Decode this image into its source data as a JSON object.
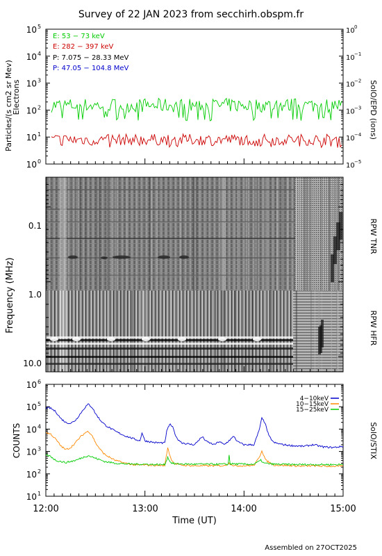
{
  "title": "Survey of 22 JAN 2023 from secchirh.obspm.fr",
  "footer": "Assembled on 27OCT2025",
  "chart_data": [
    {
      "type": "line",
      "panel": "particles",
      "ylabel_lines": [
        "Particles/(s cm2 sr Mev)",
        "Electrons"
      ],
      "right_label": "SolO/EPD (ions)",
      "y_scale": "log",
      "ylim": [
        1,
        100000
      ],
      "right_ylim": [
        1e-05,
        1
      ],
      "left_ticks": [
        {
          "m": "10",
          "e": "5"
        },
        {
          "m": "10",
          "e": "4"
        },
        {
          "m": "10",
          "e": "3"
        },
        {
          "m": "10",
          "e": "2"
        },
        {
          "m": "10",
          "e": "1"
        },
        {
          "m": "10",
          "e": "0"
        }
      ],
      "right_ticks": [
        {
          "m": "10",
          "e": "0"
        },
        {
          "m": "10",
          "e": "−1"
        },
        {
          "m": "10",
          "e": "−2"
        },
        {
          "m": "10",
          "e": "−3"
        },
        {
          "m": "10",
          "e": "−4"
        },
        {
          "m": "10",
          "e": "−5"
        }
      ],
      "legend": [
        {
          "label": "E: 53 − 73 keV",
          "color": "#00cc00"
        },
        {
          "label": "E: 282 − 397 keV",
          "color": "#cc0000"
        },
        {
          "label": "P: 7.075 − 28.33 MeV",
          "color": "#000000"
        },
        {
          "label": "P: 47.05 − 104.8 MeV",
          "color": "#0000cc"
        }
      ],
      "series": [
        {
          "name": "E: 53 − 73 keV",
          "color": "#00cc00",
          "typical": 150,
          "range": [
            40,
            300
          ]
        },
        {
          "name": "E: 282 − 397 keV",
          "color": "#cc0000",
          "typical": 8,
          "range": [
            4,
            20
          ]
        }
      ]
    },
    {
      "type": "heatmap",
      "panel": "radio",
      "ylabel": "Frequency (MHz)",
      "y_scale": "log",
      "ylim": [
        0.04,
        16
      ],
      "ytick_labels": [
        "0.1",
        "1.0",
        "10.0"
      ],
      "right_labels": [
        "RPW TNR",
        "RPW HFR"
      ],
      "tnr_hfr_boundary_mhz": 1.0
    },
    {
      "type": "line",
      "panel": "stix",
      "ylabel": "COUNTS",
      "right_label": "SolO/STIX",
      "y_scale": "log",
      "ylim": [
        10,
        1000000
      ],
      "ticks": [
        {
          "m": "10",
          "e": "6"
        },
        {
          "m": "10",
          "e": "5"
        },
        {
          "m": "10",
          "e": "4"
        },
        {
          "m": "10",
          "e": "3"
        },
        {
          "m": "10",
          "e": "2"
        },
        {
          "m": "10",
          "e": "1"
        }
      ],
      "xlabel": "Time (UT)",
      "x_tick_labels": [
        "12:00",
        "13:00",
        "14:00",
        "15:00"
      ],
      "x_hours": [
        12,
        15
      ],
      "series": [
        {
          "name": "4−10keV",
          "color": "#0000cc",
          "x": [
            12.0,
            12.05,
            12.1,
            12.15,
            12.2,
            12.25,
            12.3,
            12.35,
            12.4,
            12.43,
            12.47,
            12.5,
            12.55,
            12.6,
            12.7,
            12.8,
            12.9,
            12.95,
            12.97,
            13.0,
            13.1,
            13.2,
            13.22,
            13.25,
            13.28,
            13.32,
            13.37,
            13.42,
            13.5,
            13.55,
            13.58,
            13.62,
            13.7,
            13.75,
            13.8,
            13.9,
            13.93,
            14.0,
            14.1,
            14.15,
            14.18,
            14.21,
            14.25,
            14.3,
            14.4,
            14.5,
            14.6,
            14.7,
            14.8,
            14.9,
            15.0
          ],
          "values": [
            90000,
            85000,
            60000,
            30000,
            20000,
            18000,
            25000,
            50000,
            100000,
            130000,
            90000,
            50000,
            25000,
            15000,
            8000,
            5000,
            3500,
            3000,
            7000,
            3000,
            2500,
            2400,
            8000,
            17000,
            12000,
            4000,
            2500,
            2200,
            2000,
            3500,
            4500,
            2800,
            2000,
            2800,
            2000,
            4800,
            2800,
            2000,
            2000,
            8000,
            30000,
            20000,
            5000,
            2500,
            2000,
            1800,
            1700,
            2000,
            1600,
            1500,
            1700
          ]
        },
        {
          "name": "10−15keV",
          "color": "#ff8800",
          "x": [
            12.0,
            12.05,
            12.1,
            12.15,
            12.2,
            12.25,
            12.3,
            12.35,
            12.4,
            12.43,
            12.47,
            12.5,
            12.55,
            12.6,
            12.7,
            12.8,
            12.9,
            13.0,
            13.1,
            13.2,
            13.23,
            13.26,
            13.3,
            13.4,
            13.5,
            13.6,
            13.7,
            13.8,
            13.85,
            13.9,
            14.0,
            14.1,
            14.15,
            14.18,
            14.22,
            14.3,
            14.4,
            14.5,
            14.6,
            14.7,
            14.8,
            14.9,
            15.0
          ],
          "values": [
            7000,
            6000,
            3500,
            1800,
            1200,
            1500,
            2500,
            4500,
            7000,
            8000,
            5000,
            2500,
            1200,
            700,
            400,
            300,
            250,
            250,
            240,
            240,
            1500,
            500,
            280,
            240,
            230,
            230,
            230,
            230,
            300,
            230,
            230,
            240,
            500,
            1100,
            400,
            250,
            240,
            230,
            220,
            230,
            220,
            220,
            220
          ]
        },
        {
          "name": "15−25keV",
          "color": "#00cc00",
          "x": [
            12.0,
            12.05,
            12.1,
            12.2,
            12.3,
            12.4,
            12.43,
            12.5,
            12.6,
            12.7,
            12.8,
            12.9,
            13.0,
            13.1,
            13.2,
            13.23,
            13.26,
            13.3,
            13.5,
            13.7,
            13.84,
            13.85,
            13.86,
            14.0,
            14.1,
            14.17,
            14.2,
            14.3,
            14.5,
            14.7,
            14.9,
            15.0
          ],
          "values": [
            700,
            600,
            400,
            320,
            400,
            600,
            650,
            500,
            350,
            300,
            280,
            270,
            270,
            260,
            260,
            550,
            320,
            280,
            270,
            270,
            270,
            700,
            280,
            270,
            270,
            400,
            300,
            270,
            260,
            260,
            260,
            260
          ]
        }
      ]
    }
  ]
}
